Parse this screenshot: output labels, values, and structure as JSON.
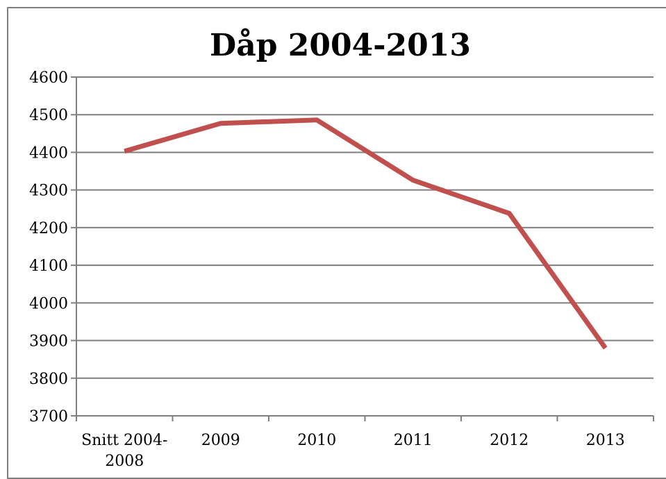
{
  "chart_data": {
    "type": "line",
    "title": "Dåp 2004-2013",
    "categories": [
      [
        "Snitt 2004-",
        "2008"
      ],
      [
        "2009"
      ],
      [
        "2010"
      ],
      [
        "2011"
      ],
      [
        "2012"
      ],
      [
        "2013"
      ]
    ],
    "series": [
      {
        "values": [
          4403,
          4477,
          4486,
          4326,
          4238,
          3880
        ]
      }
    ],
    "ylim": [
      3700,
      4600
    ],
    "yticks": [
      3700,
      3800,
      3900,
      4000,
      4100,
      4200,
      4300,
      4400,
      4500,
      4600
    ],
    "grid": true,
    "line_color": "#c0504d",
    "grid_color": "#7f7f7f"
  }
}
